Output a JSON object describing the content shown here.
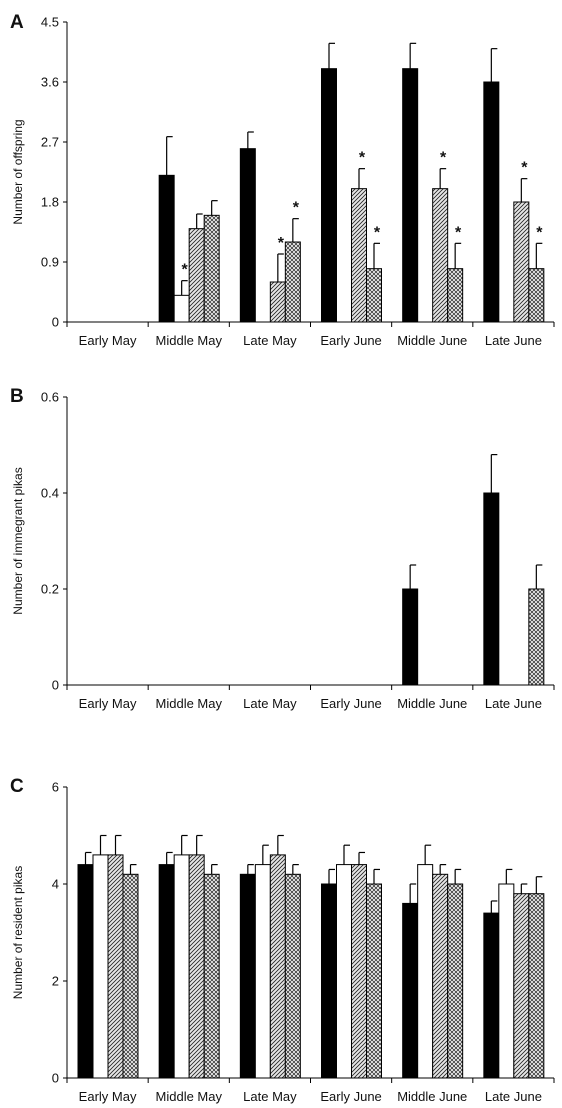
{
  "chart_data": [
    {
      "panel": "A",
      "type": "bar",
      "ylabel": "Number of offspring",
      "categories": [
        "Early May",
        "Middle May",
        "Late May",
        "Early June",
        "Middle June",
        "Late June"
      ],
      "yticks": [
        "0",
        "0.9",
        "1.8",
        "2.7",
        "3.6",
        "4.5"
      ],
      "ylim": [
        0,
        4.5
      ],
      "series": [
        {
          "fill": "black",
          "values": [
            0,
            2.2,
            2.6,
            3.8,
            3.8,
            3.6
          ],
          "errors": [
            0,
            0.58,
            0.25,
            0.38,
            0.38,
            0.5
          ],
          "marks": [
            false,
            false,
            false,
            false,
            false,
            false
          ]
        },
        {
          "fill": "white",
          "values": [
            0,
            0.4,
            0,
            0,
            0,
            0
          ],
          "errors": [
            0,
            0.22,
            0,
            0,
            0,
            0
          ],
          "marks": [
            false,
            true,
            false,
            false,
            false,
            false
          ]
        },
        {
          "fill": "hatched",
          "values": [
            0,
            1.4,
            0.6,
            2.0,
            2.0,
            1.8
          ],
          "errors": [
            0,
            0.22,
            0.42,
            0.3,
            0.3,
            0.35
          ],
          "marks": [
            false,
            false,
            true,
            true,
            true,
            true
          ]
        },
        {
          "fill": "crosshatch",
          "values": [
            0,
            1.6,
            1.2,
            0.8,
            0.8,
            0.8
          ],
          "errors": [
            0,
            0.22,
            0.35,
            0.38,
            0.38,
            0.38
          ],
          "marks": [
            false,
            false,
            true,
            true,
            true,
            true
          ]
        }
      ],
      "mark_symbol": "*"
    },
    {
      "panel": "B",
      "type": "bar",
      "ylabel": "Number of immegrant pikas",
      "categories": [
        "Early May",
        "Middle May",
        "Late May",
        "Early June",
        "Middle June",
        "Late June"
      ],
      "yticks": [
        "0",
        "0.2",
        "0.4",
        "0.6"
      ],
      "ylim": [
        0,
        0.6
      ],
      "series": [
        {
          "fill": "black",
          "values": [
            0,
            0,
            0,
            0,
            0.2,
            0.4
          ],
          "errors": [
            0,
            0,
            0,
            0,
            0.05,
            0.08
          ]
        },
        {
          "fill": "white",
          "values": [
            0,
            0,
            0,
            0,
            0,
            0
          ],
          "errors": [
            0,
            0,
            0,
            0,
            0,
            0
          ]
        },
        {
          "fill": "hatched",
          "values": [
            0,
            0,
            0,
            0,
            0,
            0
          ],
          "errors": [
            0,
            0,
            0,
            0,
            0,
            0
          ]
        },
        {
          "fill": "crosshatch",
          "values": [
            0,
            0,
            0,
            0,
            0,
            0.2
          ],
          "errors": [
            0,
            0,
            0,
            0,
            0,
            0.05
          ]
        }
      ]
    },
    {
      "panel": "C",
      "type": "bar",
      "ylabel": "Number of resident  pikas",
      "categories": [
        "Early May",
        "Middle May",
        "Late May",
        "Early June",
        "Middle June",
        "Late June"
      ],
      "yticks": [
        "0",
        "2",
        "4",
        "6"
      ],
      "ylim": [
        0,
        6
      ],
      "series": [
        {
          "fill": "black",
          "values": [
            4.4,
            4.4,
            4.2,
            4.0,
            3.6,
            3.4
          ],
          "errors": [
            0.25,
            0.25,
            0.2,
            0.3,
            0.4,
            0.25
          ]
        },
        {
          "fill": "white",
          "values": [
            4.6,
            4.6,
            4.4,
            4.4,
            4.4,
            4.0
          ],
          "errors": [
            0.4,
            0.4,
            0.4,
            0.4,
            0.4,
            0.3
          ]
        },
        {
          "fill": "hatched",
          "values": [
            4.6,
            4.6,
            4.6,
            4.4,
            4.2,
            3.8
          ],
          "errors": [
            0.4,
            0.4,
            0.4,
            0.25,
            0.2,
            0.2
          ]
        },
        {
          "fill": "crosshatch",
          "values": [
            4.2,
            4.2,
            4.2,
            4.0,
            4.0,
            3.8
          ],
          "errors": [
            0.2,
            0.2,
            0.2,
            0.3,
            0.3,
            0.35
          ]
        }
      ]
    }
  ]
}
